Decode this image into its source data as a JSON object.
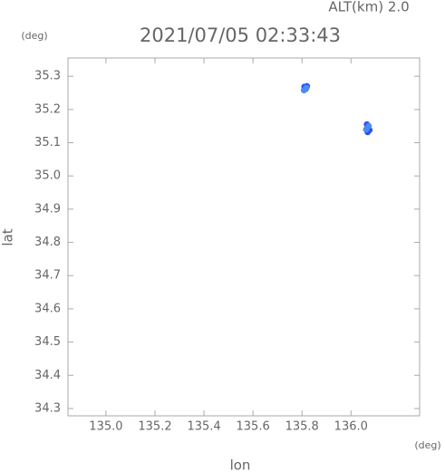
{
  "chart_data": {
    "type": "scatter",
    "title": "2021/07/05 02:33:43",
    "subtitle": "ALT(km) 2.0",
    "x_label": "lon",
    "y_label": "lat",
    "x_unit": "(deg)",
    "y_unit": "(deg)",
    "xlim": [
      134.845,
      136.28
    ],
    "ylim": [
      34.278,
      35.355
    ],
    "xticks": [
      {
        "value": 135.0,
        "label": "135.0"
      },
      {
        "value": 135.2,
        "label": "135.2"
      },
      {
        "value": 135.4,
        "label": "135.4"
      },
      {
        "value": 135.6,
        "label": "135.6"
      },
      {
        "value": 135.8,
        "label": "135.8"
      },
      {
        "value": 136.0,
        "label": "136.0"
      }
    ],
    "yticks": [
      {
        "value": 34.3,
        "label": "34.3"
      },
      {
        "value": 34.4,
        "label": "34.4"
      },
      {
        "value": 34.5,
        "label": "34.5"
      },
      {
        "value": 34.6,
        "label": "34.6"
      },
      {
        "value": 34.7,
        "label": "34.7"
      },
      {
        "value": 34.8,
        "label": "34.8"
      },
      {
        "value": 34.9,
        "label": "34.9"
      },
      {
        "value": 35.0,
        "label": "35.0"
      },
      {
        "value": 35.1,
        "label": "35.1"
      },
      {
        "value": 35.2,
        "label": "35.2"
      },
      {
        "value": 35.3,
        "label": "35.3"
      }
    ],
    "series": [
      {
        "color": "#2f4df5",
        "x": [
          135.81,
          135.815,
          135.82,
          136.065,
          136.07,
          136.075,
          136.068
        ],
        "values": [
          35.268,
          35.262,
          35.27,
          35.155,
          35.145,
          35.138,
          35.132
        ]
      },
      {
        "color": "#4a8cf0",
        "x": [
          135.808,
          135.818,
          136.072,
          136.062
        ],
        "values": [
          35.258,
          35.265,
          35.15,
          35.14
        ]
      }
    ]
  }
}
